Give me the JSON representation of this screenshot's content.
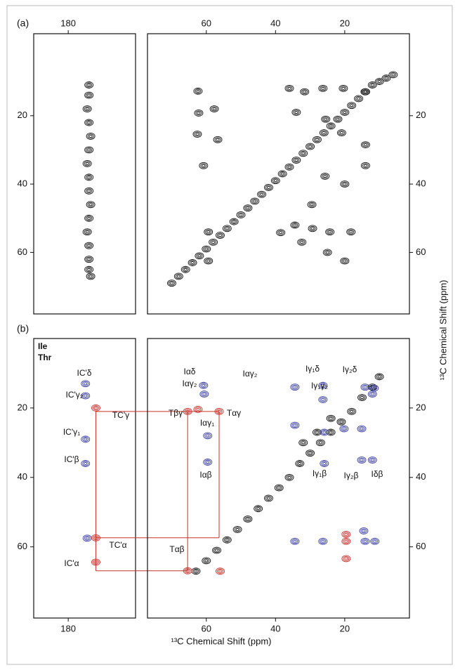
{
  "figure": {
    "panel_labels": [
      "(a)",
      "(b)"
    ],
    "xlabel": "¹³C Chemical Shift (ppm)",
    "ylabel": "¹³C Chemical Shift (ppm)"
  },
  "chart_data": [
    {
      "type": "contour",
      "xlim": [
        190,
        160.5
      ],
      "ylim": [
        78,
        -4
      ],
      "xticks": [
        180
      ],
      "yticks": [
        20,
        40,
        60
      ],
      "xaxis_side": "top",
      "yaxis_side": "left",
      "series": [
        {
          "color": "#111111",
          "x": [
            174,
            174,
            174.5,
            174,
            173.5,
            174,
            174.5,
            174,
            174,
            173.5,
            174,
            174.5,
            174,
            174,
            174,
            173.5
          ],
          "y": [
            11,
            14,
            18,
            22,
            26,
            30,
            34,
            38,
            42,
            46,
            50,
            54,
            58,
            62,
            65,
            67
          ]
        }
      ]
    },
    {
      "type": "contour",
      "xlim": [
        77,
        1.3
      ],
      "ylim": [
        78,
        -4
      ],
      "xticks": [
        60,
        40,
        20
      ],
      "yticks": [
        20,
        40,
        60
      ],
      "xaxis_side": "top",
      "yaxis_side": "right",
      "series": [
        {
          "color": "#111111",
          "x": [
            70,
            68,
            66,
            64,
            62,
            60,
            58,
            56,
            54,
            52,
            50,
            48,
            46,
            44,
            42,
            40,
            38,
            36,
            34,
            32,
            30,
            28,
            26,
            24,
            22,
            20,
            18,
            16,
            14,
            12,
            10,
            8,
            6,
            62.4,
            62.2,
            57.7,
            56.7,
            60.8,
            62.6,
            36,
            31.6,
            26.3,
            20.4,
            14.1,
            34,
            25.5,
            20.9,
            14,
            25.7,
            14,
            20,
            34.4,
            29.3,
            24.3,
            18.2,
            32.4,
            25,
            20,
            29.5,
            38.5,
            59.4,
            59.4
          ],
          "y": [
            69,
            67,
            65,
            63,
            61,
            59,
            57,
            55,
            53,
            51,
            49,
            47,
            45,
            43,
            41,
            39,
            37,
            35,
            33,
            31,
            29,
            27,
            25,
            23,
            21,
            19,
            17,
            15,
            13,
            11,
            10,
            9,
            8,
            12.8,
            19.2,
            18,
            27,
            34.6,
            25.4,
            12,
            13,
            12,
            12,
            13,
            19,
            21,
            25,
            28.5,
            37.7,
            34.6,
            40,
            52,
            53,
            54,
            54,
            57,
            60,
            62.5,
            46,
            54.2,
            54,
            62.5
          ]
        }
      ]
    },
    {
      "type": "contour",
      "xlim": [
        190,
        160.5
      ],
      "ylim": [
        80.5,
        0
      ],
      "xticks": [
        180
      ],
      "yticks": [
        20,
        40,
        60
      ],
      "xaxis_side": "bottom",
      "yaxis_side": "left",
      "series": [
        {
          "name": "Ile",
          "color": "#3b3fa0",
          "x": [
            175,
            175,
            175,
            175,
            174.5
          ],
          "y": [
            13,
            16.5,
            29,
            36,
            57.5
          ]
        },
        {
          "name": "Thr",
          "color": "#c8312b",
          "x": [
            172,
            172,
            172
          ],
          "y": [
            20,
            57.4,
            64.4
          ]
        }
      ],
      "annotations": [
        {
          "text": "IC'δ",
          "color": "#3b3fa0"
        },
        {
          "text": "IC'γ₂",
          "color": "#3b3fa0"
        },
        {
          "text": "IC'γ₁",
          "color": "#3b3fa0"
        },
        {
          "text": "IC'β",
          "color": "#3b3fa0"
        },
        {
          "text": "IC'α",
          "color": "#3b3fa0"
        },
        {
          "text": "TC'γ",
          "color": "#c8312b"
        },
        {
          "text": "TC'α",
          "color": "#c8312b"
        }
      ],
      "links": {
        "color": "#c8312b",
        "segments": [
          {
            "x": [
              172,
              56.3
            ],
            "y": [
              21,
              21
            ]
          },
          {
            "x": [
              172,
              172
            ],
            "y": [
              21,
              66.9
            ]
          },
          {
            "x": [
              172,
              56.3
            ],
            "y": [
              57.4,
              57.4
            ]
          },
          {
            "x": [
              172,
              65.4
            ],
            "y": [
              66.9,
              66.9
            ]
          },
          {
            "x": [
              65.4,
              65.4
            ],
            "y": [
              21,
              66.9
            ]
          },
          {
            "x": [
              56.3,
              56.3
            ],
            "y": [
              21,
              57.4
            ]
          }
        ]
      }
    },
    {
      "type": "contour",
      "xlim": [
        77,
        1.3
      ],
      "ylim": [
        80.5,
        0
      ],
      "xticks": [
        60,
        40,
        20
      ],
      "yticks": [
        20,
        40,
        60
      ],
      "xaxis_side": "bottom",
      "yaxis_side": "right",
      "series": [
        {
          "color": "#111111",
          "x": [
            63,
            60,
            57,
            54,
            51,
            48,
            45,
            42,
            39,
            36,
            33,
            30,
            27,
            24,
            21,
            18,
            15,
            12,
            10,
            32,
            28,
            24
          ],
          "y": [
            67,
            64,
            61,
            58,
            55,
            52,
            49,
            46,
            43,
            40,
            36,
            33,
            30,
            27,
            24,
            21,
            17,
            14,
            11,
            30,
            27,
            23
          ]
        },
        {
          "color": "#3b3fa0",
          "x": [
            60.8,
            60.6,
            59.6,
            59.6,
            34.4,
            26.3,
            26.3,
            34.4,
            25.9,
            20.2,
            15.1,
            14.1,
            11.5,
            25.9,
            15.1,
            12,
            12,
            34.4,
            26.3,
            14.1,
            11.3,
            14.5
          ],
          "y": [
            13.5,
            16,
            28,
            35.6,
            14,
            13.5,
            17.6,
            25,
            27,
            26,
            26,
            14,
            14.3,
            36,
            35,
            35,
            16,
            58.4,
            58.4,
            58.4,
            58.4,
            55.4
          ]
        },
        {
          "color": "#c8312b",
          "x": [
            65.4,
            62.4,
            56.3,
            65.4,
            19.6,
            19.6,
            19.6,
            56
          ],
          "y": [
            21,
            20.4,
            21,
            66.9,
            56.4,
            58.4,
            63.4,
            67
          ]
        }
      ],
      "annotations": [
        {
          "text": "Tβγ",
          "color": "#c8312b"
        },
        {
          "text": "Tαγ",
          "color": "#c8312b"
        },
        {
          "text": "Tαβ",
          "color": "#c8312b"
        },
        {
          "text": "Iαδ",
          "color": "#3b3fa0"
        },
        {
          "text": "Iαγ₂",
          "color": "#3b3fa0"
        },
        {
          "text": "Iαγ₂",
          "color": "#3b3fa0"
        },
        {
          "text": "Iαγ₁",
          "color": "#3b3fa0"
        },
        {
          "text": "Iαβ",
          "color": "#3b3fa0"
        },
        {
          "text": "Iγ₁δ",
          "color": "#3b3fa0"
        },
        {
          "text": "Iγ₂δ",
          "color": "#3b3fa0"
        },
        {
          "text": "Iγ₁γ₂",
          "color": "#3b3fa0"
        },
        {
          "text": "Iγ₁β",
          "color": "#3b3fa0"
        },
        {
          "text": "Iγ₂β",
          "color": "#3b3fa0"
        },
        {
          "text": "Iδβ",
          "color": "#3b3fa0"
        }
      ]
    }
  ]
}
